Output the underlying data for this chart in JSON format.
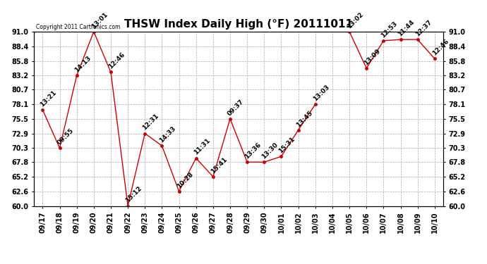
{
  "title": "THSW Index Daily High (°F) 20111011",
  "copyright": "Copyright 2011 Cartronics.com",
  "x_labels": [
    "09/17",
    "09/18",
    "09/19",
    "09/20",
    "09/21",
    "09/22",
    "09/23",
    "09/24",
    "09/25",
    "09/26",
    "09/27",
    "09/28",
    "09/29",
    "09/30",
    "10/01",
    "10/02",
    "10/03",
    "10/04",
    "10/05",
    "10/06",
    "10/07",
    "10/08",
    "10/09",
    "10/10"
  ],
  "y_values": [
    77.1,
    70.3,
    83.2,
    91.0,
    83.8,
    60.0,
    72.9,
    70.7,
    62.6,
    68.5,
    65.2,
    75.5,
    67.8,
    67.8,
    68.8,
    73.5,
    78.1,
    null,
    91.0,
    84.5,
    89.4,
    89.6,
    89.6,
    86.2
  ],
  "point_labels": [
    "13:21",
    "09:55",
    "14:13",
    "13:01",
    "12:46",
    "15:12",
    "12:31",
    "14:33",
    "10:28",
    "11:31",
    "15:41",
    "09:37",
    "13:36",
    "13:30",
    "15:31",
    "13:45",
    "13:03",
    "",
    "13:02",
    "13:09",
    "12:53",
    "11:44",
    "12:37",
    "12:46"
  ],
  "ylim": [
    60.0,
    91.0
  ],
  "yticks": [
    60.0,
    62.6,
    65.2,
    67.8,
    70.3,
    72.9,
    75.5,
    78.1,
    80.7,
    83.2,
    85.8,
    88.4,
    91.0
  ],
  "line_color": "#cc0000",
  "marker_color": "#cc0000",
  "bg_color": "#ffffff",
  "grid_color": "#aaaaaa",
  "title_fontsize": 11,
  "tick_fontsize": 7,
  "label_fontsize": 6.5
}
